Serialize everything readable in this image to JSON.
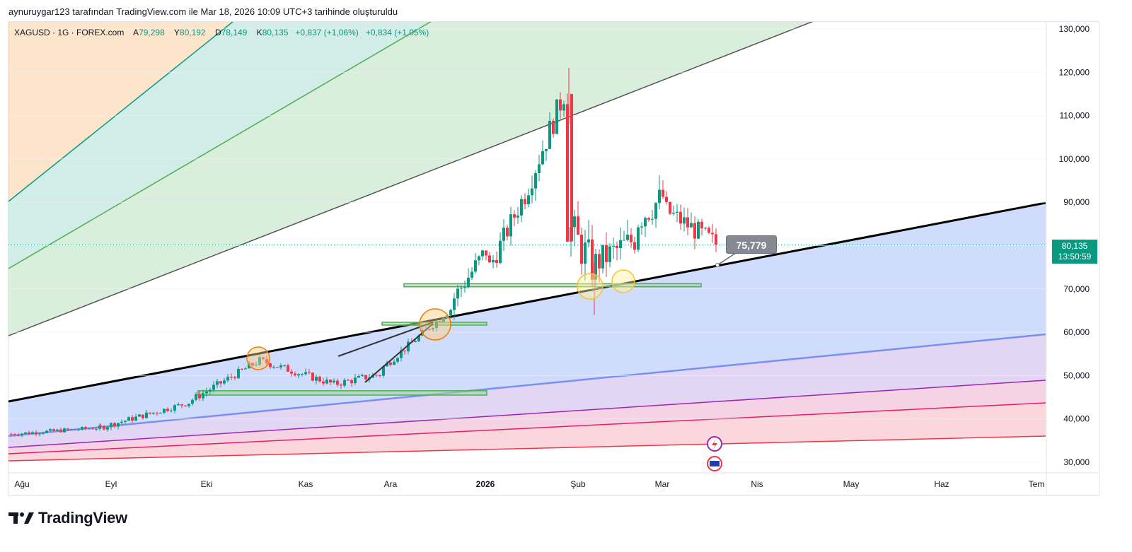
{
  "header": {
    "attribution": "aynuruygar123 tarafından TradingView.com ile Mar 18, 2026 10:09 UTC+3 tarihinde oluşturuldu"
  },
  "legend": {
    "symbol": "XAGUSD · 1G · FOREX.com",
    "open_label": "A",
    "open": "79,298",
    "high_label": "Y",
    "high": "80,192",
    "low_label": "D",
    "low": "78,149",
    "close_label": "K",
    "close": "80,135",
    "change": "+0,837 (+1,06%)",
    "change2": "+0,834 (+1,05%)"
  },
  "price_tag": {
    "price": "80,135",
    "countdown": "13:50:59"
  },
  "callout": {
    "value": "75,779"
  },
  "brand": {
    "name": "TradingView"
  },
  "colors": {
    "up": "#089981",
    "down": "#f23645",
    "channel_fill_upper": "#d7ecd9",
    "channel_fill_lower": "#cfdcfb",
    "trendline": "#000000"
  },
  "chart_data": {
    "type": "candlestick",
    "ylim": [
      28000,
      132000
    ],
    "y_ticks": [
      "130,000",
      "120,000",
      "110,000",
      "100,000",
      "90,000",
      "80,000",
      "70,000",
      "60,000",
      "50,000",
      "40,000",
      "30,000"
    ],
    "x_ticks": [
      "Ağu",
      "Eyl",
      "Eki",
      "Kas",
      "Ara",
      "2026",
      "Şub",
      "Mar",
      "Nis",
      "May",
      "Haz",
      "Tem"
    ],
    "last_price": 80135,
    "annotations": {
      "support_zones": [
        {
          "low": 45500,
          "high": 46500
        },
        {
          "low": 61800,
          "high": 62300
        },
        {
          "low": 70500,
          "high": 71200
        }
      ],
      "callout_value": 75779
    },
    "series_segments": [
      {
        "period": "Ağu",
        "open": 36500,
        "close": 37500
      },
      {
        "period": "Eyl",
        "open": 38000,
        "close": 41500
      },
      {
        "period": "Eki",
        "open": 45000,
        "close": 48500
      },
      {
        "period": "Kas",
        "open": 47500,
        "close": 50500
      },
      {
        "period": "Ara",
        "open": 56000,
        "close": 64000
      },
      {
        "period": "2026",
        "open": 70500,
        "close": 92500
      },
      {
        "period": "Şub",
        "open": 118000,
        "close": 72000
      },
      {
        "period": "Mar",
        "open": 88000,
        "close": 80135
      }
    ]
  }
}
